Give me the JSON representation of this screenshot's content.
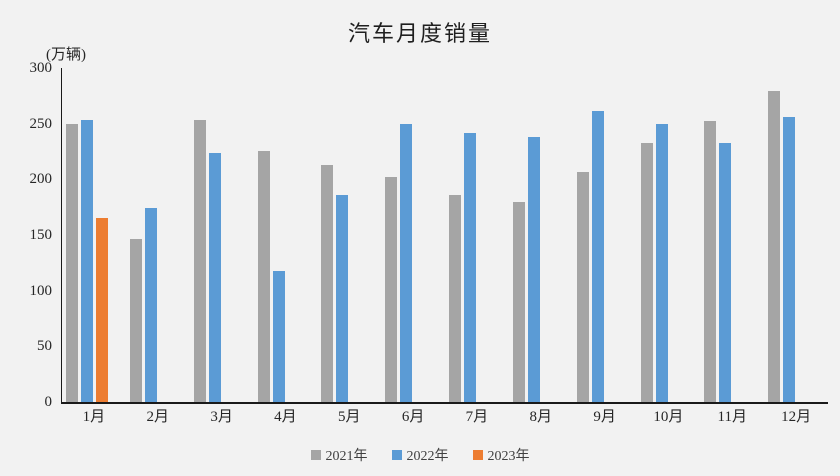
{
  "chart_data": {
    "type": "bar",
    "title": "汽车月度销量",
    "unit_label": "(万辆)",
    "unit": "万辆",
    "categories": [
      "1月",
      "2月",
      "3月",
      "4月",
      "5月",
      "6月",
      "7月",
      "8月",
      "9月",
      "10月",
      "11月",
      "12月"
    ],
    "series": [
      {
        "name": "2021年",
        "color": "#a5a5a5",
        "values": [
          250,
          146,
          253,
          225,
          213,
          202,
          186,
          180,
          207,
          233,
          252,
          279
        ]
      },
      {
        "name": "2022年",
        "color": "#5b9bd5",
        "values": [
          253,
          174,
          224,
          118,
          186,
          250,
          242,
          238,
          261,
          250,
          233,
          256
        ]
      },
      {
        "name": "2023年",
        "color": "#ed7d31",
        "values": [
          165,
          null,
          null,
          null,
          null,
          null,
          null,
          null,
          null,
          null,
          null,
          null
        ]
      }
    ],
    "y_axis": {
      "min": 0,
      "max": 300,
      "tick_interval": 50,
      "ticks": [
        0,
        50,
        100,
        150,
        200,
        250,
        300
      ]
    },
    "x_axis": {
      "label": ""
    },
    "legend": {
      "position": "bottom",
      "entries": [
        "2021年",
        "2022年",
        "2023年"
      ]
    },
    "grid": false
  },
  "colors": {
    "background": "#f2f2f2",
    "axis": "#1a1a1a",
    "text": "#262626",
    "series_2021": "#a5a5a5",
    "series_2022": "#5b9bd5",
    "series_2023": "#ed7d31"
  }
}
